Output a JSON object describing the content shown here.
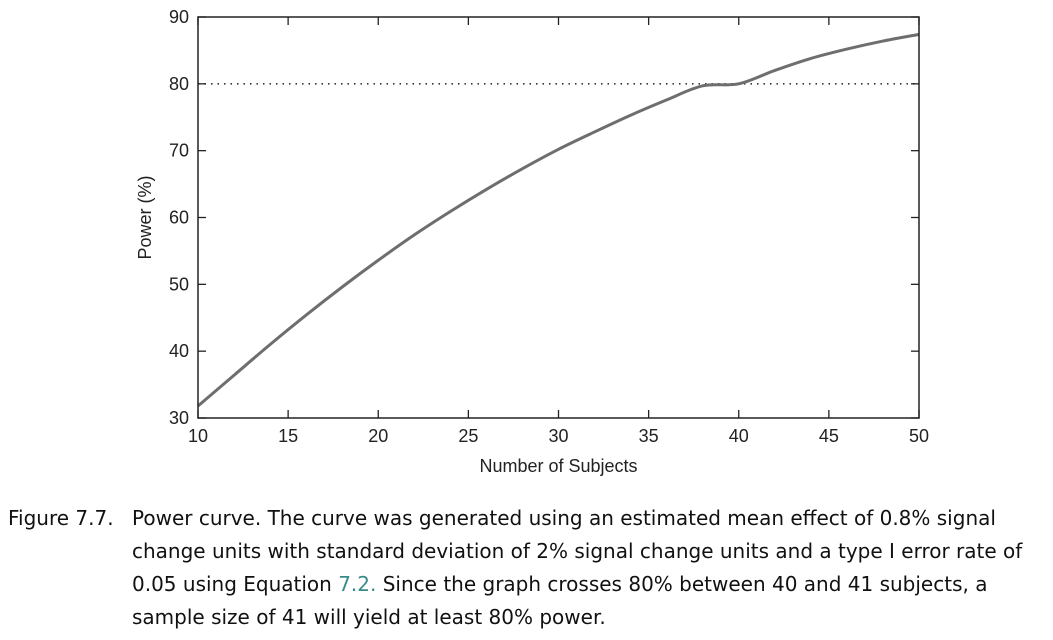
{
  "chart_data": {
    "type": "line",
    "title": "",
    "xlabel": "Number of Subjects",
    "ylabel": "Power (%)",
    "xlim": [
      10,
      50
    ],
    "ylim": [
      30,
      90
    ],
    "xticks": [
      10,
      15,
      20,
      25,
      30,
      35,
      40,
      45,
      50
    ],
    "yticks": [
      30,
      40,
      50,
      60,
      70,
      80,
      90
    ],
    "grid": false,
    "reference_line": {
      "y": 80,
      "style": "dotted"
    },
    "series": [
      {
        "color": "#6e6e6e",
        "x": [
          10,
          12,
          14,
          16,
          18,
          20,
          22,
          24,
          26,
          28,
          30,
          32,
          34,
          36,
          38,
          40,
          42,
          44,
          46,
          48,
          50
        ],
        "y": [
          31.8,
          36.4,
          41.0,
          45.4,
          49.6,
          53.6,
          57.4,
          60.9,
          64.2,
          67.3,
          70.2,
          72.8,
          75.3,
          77.6,
          79.7,
          80.0,
          82.0,
          83.8,
          85.2,
          86.4,
          87.4
        ]
      }
    ]
  },
  "caption": {
    "label": "Figure 7.7.",
    "text_before": "Power curve. The curve was generated using an estimated mean effect of 0.8% signal change units with standard deviation of 2% signal change units and a type I error rate of 0.05 using Equation ",
    "link": "7.2.",
    "text_after": " Since the graph crosses 80% between 40 and 41 subjects, a sample size of 41 will yield at least 80% power."
  }
}
